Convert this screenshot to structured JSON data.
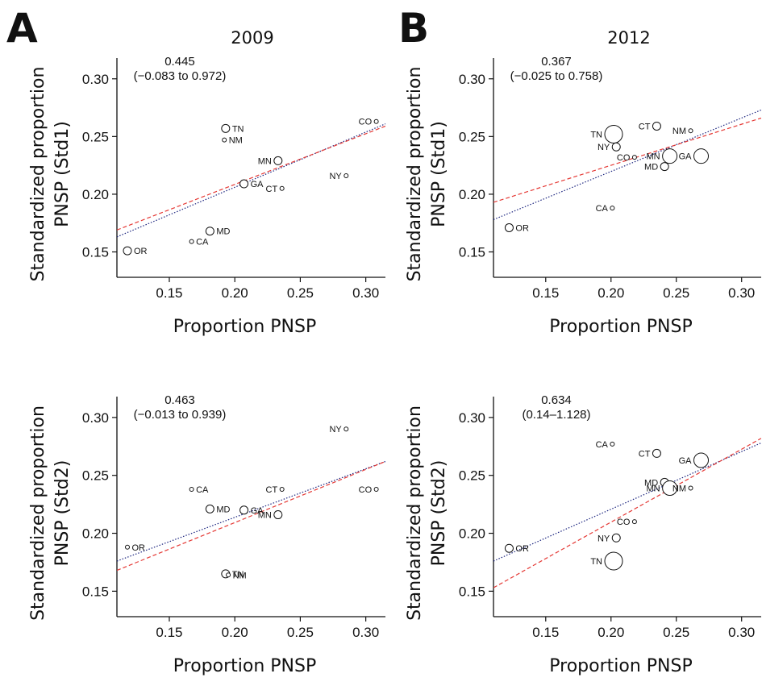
{
  "panel_letters": {
    "a": "A",
    "b": "B"
  },
  "years": {
    "2009": "2009",
    "2012": "2012"
  },
  "chart_data": [
    {
      "type": "scatter",
      "panel": "A",
      "year": "2009",
      "xlabel": "Proportion PNSP",
      "ylabel_line1": "Standardized proportion",
      "ylabel_line2": "PNSP (Std1)",
      "annotation_line1": "0.445",
      "annotation_line2": "(−0.083 to 0.972)",
      "xlim": [
        0.11,
        0.315
      ],
      "ylim": [
        0.128,
        0.318
      ],
      "xticks": [
        0.15,
        0.2,
        0.25,
        0.3
      ],
      "xtick_labels": [
        "0.15",
        "0.20",
        "0.25",
        "0.30"
      ],
      "yticks": [
        0.15,
        0.2,
        0.25,
        0.3
      ],
      "ytick_labels": [
        "0.15",
        "0.20",
        "0.25",
        "0.30"
      ],
      "points": [
        {
          "label": "OR",
          "x": 0.118,
          "y": 0.151,
          "size": "small",
          "label_side": "right"
        },
        {
          "label": "CA",
          "x": 0.167,
          "y": 0.159,
          "size": "tiny",
          "label_side": "right"
        },
        {
          "label": "MD",
          "x": 0.181,
          "y": 0.168,
          "size": "small",
          "label_side": "right"
        },
        {
          "label": "TN",
          "x": 0.193,
          "y": 0.257,
          "size": "small",
          "label_side": "right"
        },
        {
          "label": "NM",
          "x": 0.192,
          "y": 0.247,
          "size": "tiny",
          "label_side": "right"
        },
        {
          "label": "GA",
          "x": 0.207,
          "y": 0.209,
          "size": "small",
          "label_side": "right"
        },
        {
          "label": "MN",
          "x": 0.233,
          "y": 0.229,
          "size": "small",
          "label_side": "left"
        },
        {
          "label": "CT",
          "x": 0.236,
          "y": 0.205,
          "size": "tiny",
          "label_side": "left"
        },
        {
          "label": "NY",
          "x": 0.285,
          "y": 0.216,
          "size": "tiny",
          "label_side": "left"
        },
        {
          "label": "CO",
          "x": 0.308,
          "y": 0.263,
          "size": "tiny",
          "label_side": "left"
        }
      ],
      "fit_red": [
        [
          0.11,
          0.169
        ],
        [
          0.315,
          0.259
        ]
      ],
      "fit_blue": [
        [
          0.11,
          0.163
        ],
        [
          0.315,
          0.261
        ]
      ]
    },
    {
      "type": "scatter",
      "panel": "B",
      "year": "2012",
      "xlabel": "Proportion PNSP",
      "ylabel_line1": "Standardized proportion",
      "ylabel_line2": "PNSP (Std1)",
      "annotation_line1": "0.367",
      "annotation_line2": "(−0.025 to 0.758)",
      "xlim": [
        0.11,
        0.315
      ],
      "ylim": [
        0.128,
        0.318
      ],
      "xticks": [
        0.15,
        0.2,
        0.25,
        0.3
      ],
      "xtick_labels": [
        "0.15",
        "0.20",
        "0.25",
        "0.30"
      ],
      "yticks": [
        0.15,
        0.2,
        0.25,
        0.3
      ],
      "ytick_labels": [
        "0.15",
        "0.20",
        "0.25",
        "0.30"
      ],
      "points": [
        {
          "label": "OR",
          "x": 0.122,
          "y": 0.171,
          "size": "small",
          "label_side": "right"
        },
        {
          "label": "CA",
          "x": 0.201,
          "y": 0.188,
          "size": "tiny",
          "label_side": "left"
        },
        {
          "label": "TN",
          "x": 0.202,
          "y": 0.252,
          "size": "large",
          "label_side": "left"
        },
        {
          "label": "NY",
          "x": 0.204,
          "y": 0.241,
          "size": "small",
          "label_side": "left"
        },
        {
          "label": "CO",
          "x": 0.218,
          "y": 0.232,
          "size": "tiny",
          "label_side": "left"
        },
        {
          "label": "CT",
          "x": 0.235,
          "y": 0.259,
          "size": "small",
          "label_side": "left"
        },
        {
          "label": "MD",
          "x": 0.241,
          "y": 0.224,
          "size": "small",
          "label_side": "left"
        },
        {
          "label": "MN",
          "x": 0.245,
          "y": 0.233,
          "size": "medium",
          "label_side": "left"
        },
        {
          "label": "NM",
          "x": 0.261,
          "y": 0.255,
          "size": "tiny",
          "label_side": "left"
        },
        {
          "label": "GA",
          "x": 0.269,
          "y": 0.233,
          "size": "medium",
          "label_side": "left"
        }
      ],
      "fit_red": [
        [
          0.11,
          0.193
        ],
        [
          0.315,
          0.266
        ]
      ],
      "fit_blue": [
        [
          0.11,
          0.178
        ],
        [
          0.315,
          0.273
        ]
      ]
    },
    {
      "type": "scatter",
      "panel": "A",
      "year": "2009",
      "xlabel": "Proportion PNSP",
      "ylabel_line1": "Standardized proportion",
      "ylabel_line2": "PNSP (Std2)",
      "annotation_line1": "0.463",
      "annotation_line2": "(−0.013 to 0.939)",
      "xlim": [
        0.11,
        0.315
      ],
      "ylim": [
        0.128,
        0.318
      ],
      "xticks": [
        0.15,
        0.2,
        0.25,
        0.3
      ],
      "xtick_labels": [
        "0.15",
        "0.20",
        "0.25",
        "0.30"
      ],
      "yticks": [
        0.15,
        0.2,
        0.25,
        0.3
      ],
      "ytick_labels": [
        "0.15",
        "0.20",
        "0.25",
        "0.30"
      ],
      "points": [
        {
          "label": "OR",
          "x": 0.118,
          "y": 0.188,
          "size": "tiny",
          "label_side": "right"
        },
        {
          "label": "CA",
          "x": 0.167,
          "y": 0.238,
          "size": "tiny",
          "label_side": "right"
        },
        {
          "label": "MD",
          "x": 0.181,
          "y": 0.221,
          "size": "small",
          "label_side": "right"
        },
        {
          "label": "TN",
          "x": 0.193,
          "y": 0.165,
          "size": "small",
          "label_side": "right"
        },
        {
          "label": "NM",
          "x": 0.195,
          "y": 0.164,
          "size": "tiny",
          "label_side": "right"
        },
        {
          "label": "GA",
          "x": 0.207,
          "y": 0.22,
          "size": "small",
          "label_side": "right"
        },
        {
          "label": "MN",
          "x": 0.233,
          "y": 0.216,
          "size": "small",
          "label_side": "left"
        },
        {
          "label": "CT",
          "x": 0.236,
          "y": 0.238,
          "size": "tiny",
          "label_side": "left"
        },
        {
          "label": "NY",
          "x": 0.285,
          "y": 0.29,
          "size": "tiny",
          "label_side": "left"
        },
        {
          "label": "CO",
          "x": 0.308,
          "y": 0.238,
          "size": "tiny",
          "label_side": "left"
        }
      ],
      "fit_red": [
        [
          0.11,
          0.168
        ],
        [
          0.315,
          0.262
        ]
      ],
      "fit_blue": [
        [
          0.11,
          0.176
        ],
        [
          0.315,
          0.262
        ]
      ]
    },
    {
      "type": "scatter",
      "panel": "B",
      "year": "2012",
      "xlabel": "Proportion PNSP",
      "ylabel_line1": "Standardized proportion",
      "ylabel_line2": "PNSP (Std2)",
      "annotation_line1": "0.634",
      "annotation_line2": "(0.14–1.128)",
      "xlim": [
        0.11,
        0.315
      ],
      "ylim": [
        0.128,
        0.318
      ],
      "xticks": [
        0.15,
        0.2,
        0.25,
        0.3
      ],
      "xtick_labels": [
        "0.15",
        "0.20",
        "0.25",
        "0.30"
      ],
      "yticks": [
        0.15,
        0.2,
        0.25,
        0.3
      ],
      "ytick_labels": [
        "0.15",
        "0.20",
        "0.25",
        "0.30"
      ],
      "points": [
        {
          "label": "OR",
          "x": 0.122,
          "y": 0.187,
          "size": "small",
          "label_side": "right"
        },
        {
          "label": "CA",
          "x": 0.201,
          "y": 0.277,
          "size": "tiny",
          "label_side": "left"
        },
        {
          "label": "TN",
          "x": 0.202,
          "y": 0.176,
          "size": "large",
          "label_side": "left"
        },
        {
          "label": "NY",
          "x": 0.204,
          "y": 0.196,
          "size": "small",
          "label_side": "left"
        },
        {
          "label": "CO",
          "x": 0.218,
          "y": 0.21,
          "size": "tiny",
          "label_side": "left"
        },
        {
          "label": "CT",
          "x": 0.235,
          "y": 0.269,
          "size": "small",
          "label_side": "left"
        },
        {
          "label": "MD",
          "x": 0.241,
          "y": 0.244,
          "size": "small",
          "label_side": "left"
        },
        {
          "label": "MN",
          "x": 0.245,
          "y": 0.239,
          "size": "medium",
          "label_side": "left"
        },
        {
          "label": "NM",
          "x": 0.261,
          "y": 0.239,
          "size": "tiny",
          "label_side": "left"
        },
        {
          "label": "GA",
          "x": 0.269,
          "y": 0.263,
          "size": "medium",
          "label_side": "left"
        }
      ],
      "fit_red": [
        [
          0.11,
          0.153
        ],
        [
          0.315,
          0.282
        ]
      ],
      "fit_blue": [
        [
          0.11,
          0.176
        ],
        [
          0.315,
          0.278
        ]
      ]
    }
  ]
}
